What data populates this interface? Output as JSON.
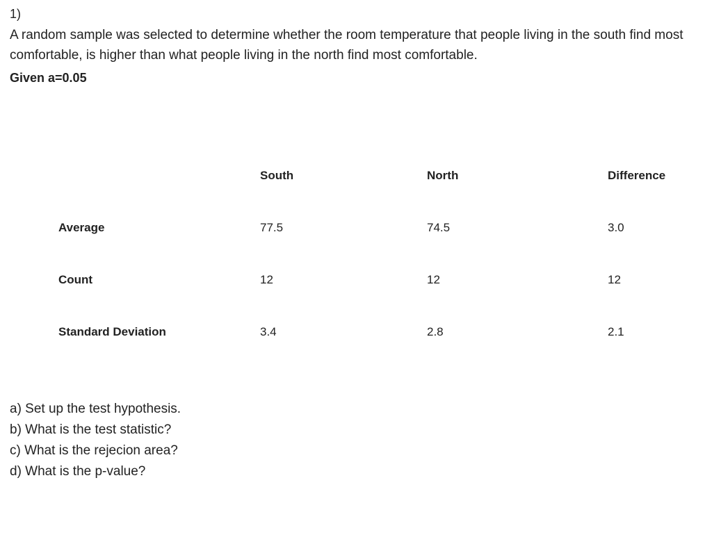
{
  "question_number": "1)",
  "prompt": "A random sample was selected to determine whether the room temperature that people living in the south find most comfortable, is higher than what people living in the north find most comfortable.",
  "given": "Given a=0.05",
  "table": {
    "columns": [
      "South",
      "North",
      "Difference"
    ],
    "rows": [
      {
        "label": "Average",
        "values": [
          "77.5",
          "74.5",
          "3.0"
        ]
      },
      {
        "label": "Count",
        "values": [
          "12",
          "12",
          "12"
        ]
      },
      {
        "label": "Standard Deviation",
        "values": [
          "3.4",
          "2.8",
          "2.1"
        ]
      }
    ]
  },
  "subquestions": {
    "a": "a) Set up the test hypothesis.",
    "b": "b) What is the test statistic?",
    "c": "c) What is the rejecion area?",
    "d": "d) What is the p-value?"
  }
}
